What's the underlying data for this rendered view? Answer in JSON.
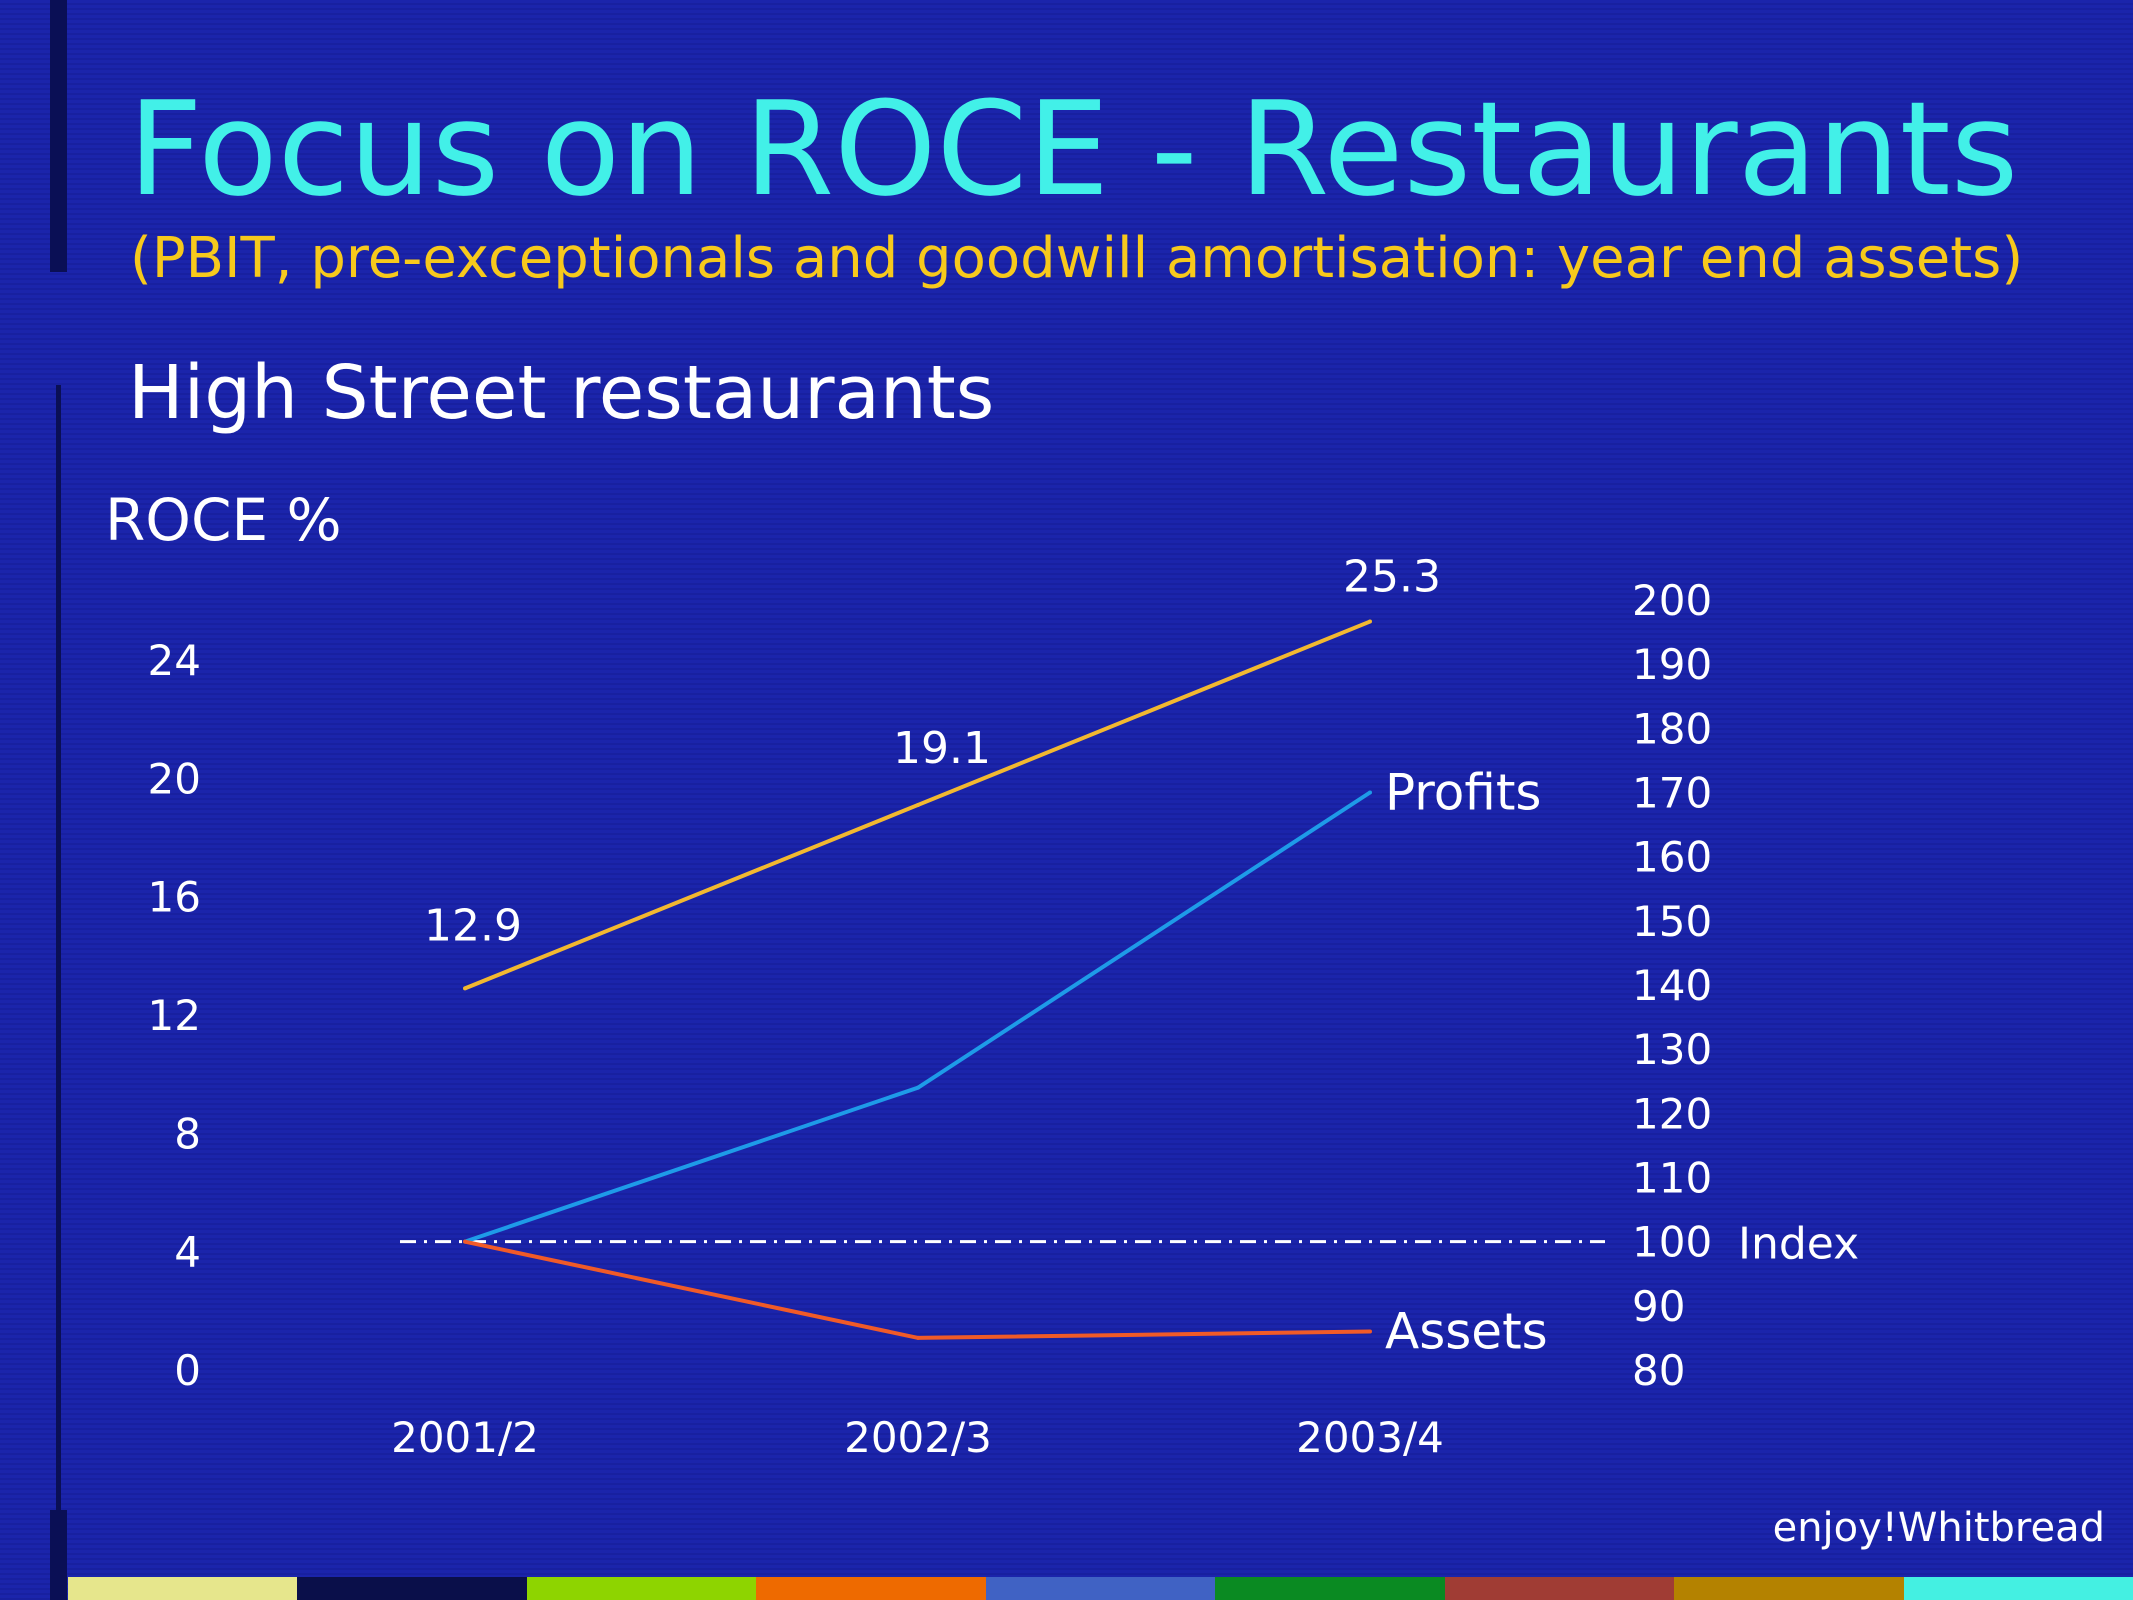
{
  "title": "Focus on ROCE - Restaurants",
  "subtitle": "(PBIT, pre-exceptionals and goodwill amortisation: year end assets)",
  "section_heading": "High Street restaurants",
  "brand": "enjoy!Whitbread",
  "colors": {
    "background": "#1a22a8",
    "title": "#42f0e8",
    "subtitle": "#f7c91c",
    "roce_line": "#f2b830",
    "profits_line": "#1e9be8",
    "assets_line": "#f05a28",
    "index_line": "#ffffff"
  },
  "footer_strip_colors": [
    "#e6e68c",
    "#0a0f4a",
    "#8ed400",
    "#ee6a00",
    "#4062c4",
    "#0a8a22",
    "#a03c34",
    "#b48200",
    "#44f0e2"
  ],
  "chart_data": {
    "type": "line",
    "categories": [
      "2001/2",
      "2002/3",
      "2003/4"
    ],
    "left_axis": {
      "label": "ROCE %",
      "ticks": [
        "0",
        "4",
        "8",
        "12",
        "16",
        "20",
        "24"
      ],
      "range": [
        0,
        26.5
      ]
    },
    "right_axis": {
      "label": "Index",
      "ticks": [
        "80",
        "90",
        "100",
        "110",
        "120",
        "130",
        "140",
        "150",
        "160",
        "170",
        "180",
        "190",
        "200"
      ],
      "range": [
        80,
        200
      ]
    },
    "series": [
      {
        "key": "roce",
        "axis": "left",
        "values": [
          12.9,
          19.1,
          25.3
        ],
        "data_labels": [
          "12.9",
          "19.1",
          "25.3"
        ],
        "color": "#f2b830"
      },
      {
        "key": "profits",
        "name": "Profits",
        "axis": "right",
        "values": [
          100,
          124,
          170
        ],
        "color": "#1e9be8"
      },
      {
        "key": "assets",
        "name": "Assets",
        "axis": "right",
        "values": [
          100,
          85,
          86
        ],
        "color": "#f05a28"
      }
    ],
    "reference_line": {
      "axis": "right",
      "value": 100,
      "label": "Index",
      "style": "dash-dot"
    },
    "grid": false,
    "legend": "inline labels at line ends"
  }
}
